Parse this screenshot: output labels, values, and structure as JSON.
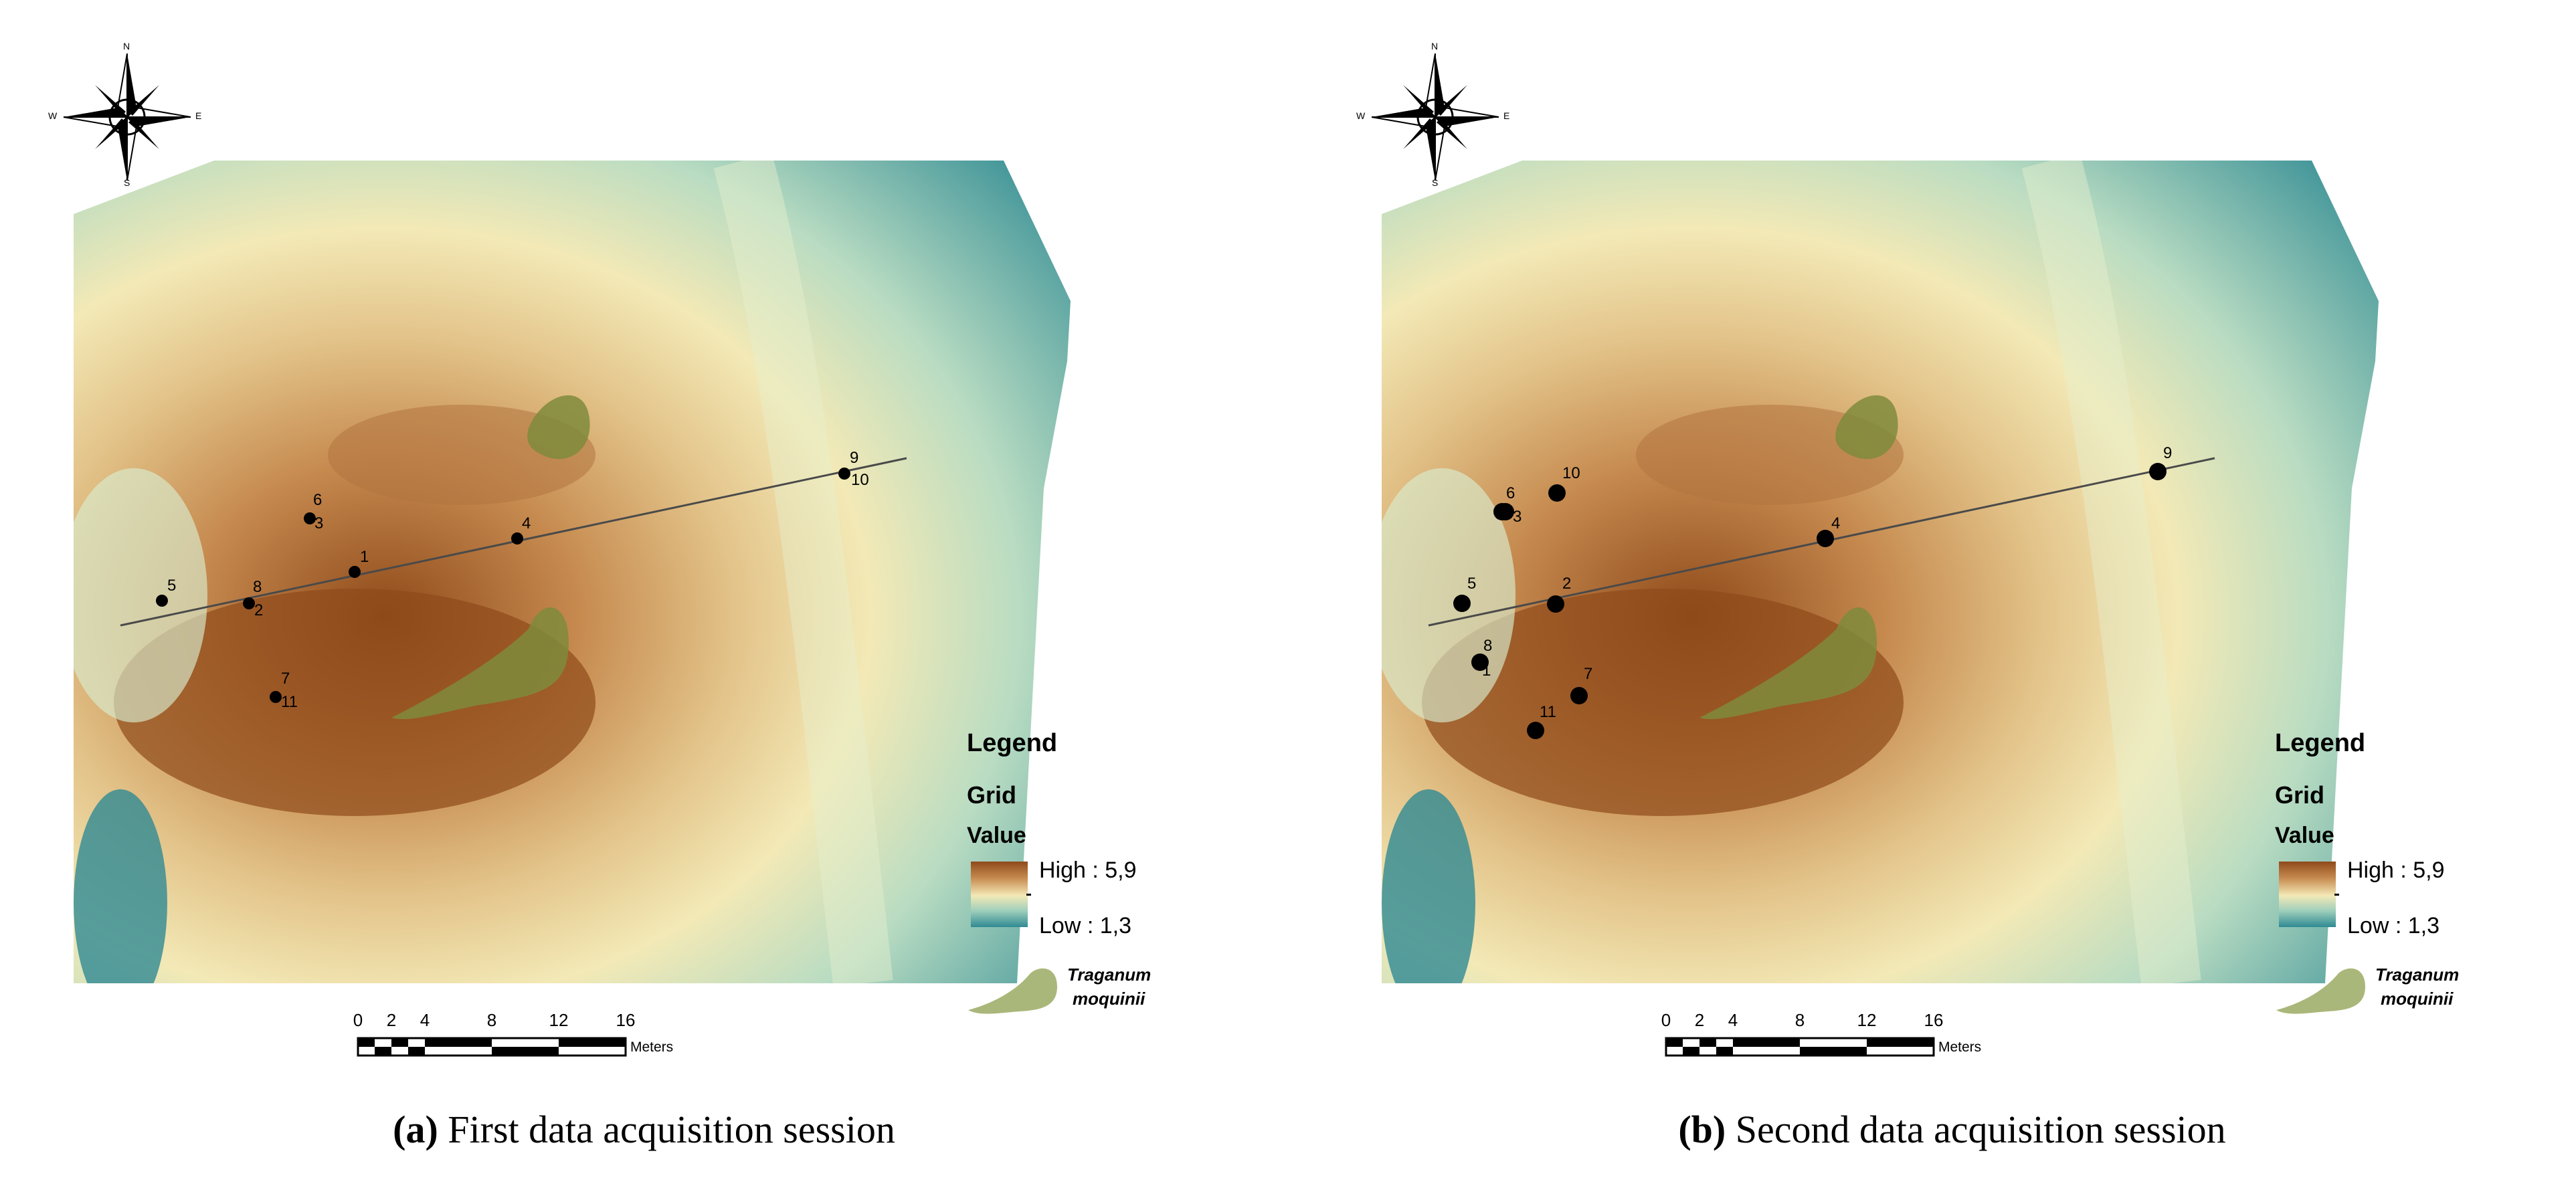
{
  "colors": {
    "high": "#8f4a1a",
    "mid_high": "#c68a4f",
    "mid": "#f3e9b6",
    "mid_low": "#9fcfbb",
    "low": "#2f8a93",
    "species": "#7f8b3c",
    "points": "#000000",
    "transect": "#4a4a4a"
  },
  "icons": {
    "compass": "compass-rose-icon",
    "species": "plant-patch-icon"
  },
  "compass": {
    "n": "N",
    "s": "S",
    "e": "E",
    "w": "W"
  },
  "legend": {
    "title": "Legend",
    "grid": "Grid",
    "value": "Value",
    "high": "High : 5,9",
    "low": "Low : 1,3",
    "species_line1": "Traganum",
    "species_line2": "moquinii"
  },
  "scalebar": {
    "ticks": [
      "0",
      "2",
      "4",
      "8",
      "12",
      "16"
    ],
    "units": "Meters"
  },
  "panels": [
    {
      "caption_label": "(a)",
      "caption_text": " First data acquisition session",
      "point_labels": [
        "1",
        "2",
        "3",
        "4",
        "5",
        "6",
        "7",
        "8",
        "9",
        "10",
        "11"
      ]
    },
    {
      "caption_label": "(b)",
      "caption_text": " Second data acquisition session",
      "point_labels": [
        "1",
        "2",
        "3",
        "4",
        "5",
        "6",
        "7",
        "8",
        "9",
        "10",
        "11"
      ]
    }
  ]
}
